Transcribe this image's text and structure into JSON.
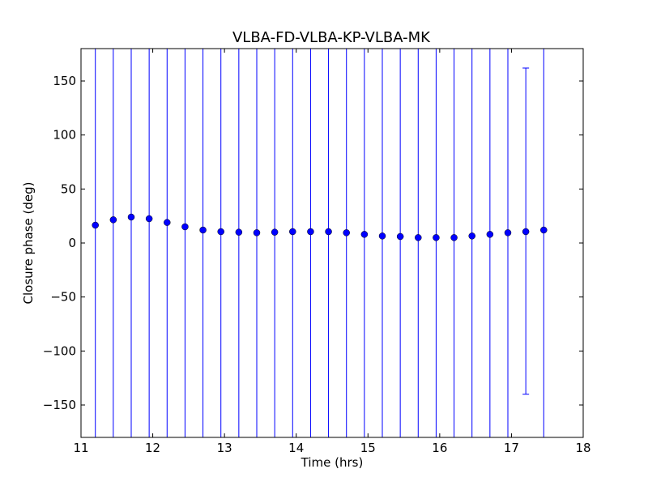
{
  "chart_data": {
    "type": "scatter",
    "title": "VLBA-FD-VLBA-KP-VLBA-MK",
    "xlabel": "Time (hrs)",
    "ylabel": "Closure phase (deg)",
    "xlim": [
      11,
      18
    ],
    "ylim": [
      -180,
      180
    ],
    "x_ticks": [
      11,
      12,
      13,
      14,
      15,
      16,
      17,
      18
    ],
    "x_tick_labels": [
      "11",
      "12",
      "13",
      "14",
      "15",
      "16",
      "17",
      "18"
    ],
    "y_ticks": [
      150,
      100,
      50,
      0,
      -50,
      -100,
      -150
    ],
    "y_tick_labels": [
      "150",
      "100",
      "50",
      "0",
      "−50",
      "−100",
      "−150"
    ],
    "grid": false,
    "marker_color": "#0000ff",
    "errorbar_color": "#0000ff",
    "points": [
      {
        "x": 11.2,
        "y": 16.5,
        "yerr_low": -180,
        "yerr_high": 180
      },
      {
        "x": 11.45,
        "y": 21.5,
        "yerr_low": -180,
        "yerr_high": 180
      },
      {
        "x": 11.7,
        "y": 24.0,
        "yerr_low": -180,
        "yerr_high": 180
      },
      {
        "x": 11.95,
        "y": 22.5,
        "yerr_low": -180,
        "yerr_high": 180
      },
      {
        "x": 12.2,
        "y": 19.0,
        "yerr_low": -180,
        "yerr_high": 180
      },
      {
        "x": 12.45,
        "y": 15.0,
        "yerr_low": -180,
        "yerr_high": 180
      },
      {
        "x": 12.7,
        "y": 12.0,
        "yerr_low": -180,
        "yerr_high": 180
      },
      {
        "x": 12.95,
        "y": 10.5,
        "yerr_low": -180,
        "yerr_high": 180
      },
      {
        "x": 13.2,
        "y": 10.0,
        "yerr_low": -180,
        "yerr_high": 180
      },
      {
        "x": 13.45,
        "y": 9.5,
        "yerr_low": -180,
        "yerr_high": 180
      },
      {
        "x": 13.7,
        "y": 10.0,
        "yerr_low": -180,
        "yerr_high": 180
      },
      {
        "x": 13.95,
        "y": 10.5,
        "yerr_low": -180,
        "yerr_high": 180
      },
      {
        "x": 14.2,
        "y": 10.5,
        "yerr_low": -180,
        "yerr_high": 180
      },
      {
        "x": 14.45,
        "y": 10.5,
        "yerr_low": -180,
        "yerr_high": 180
      },
      {
        "x": 14.7,
        "y": 9.5,
        "yerr_low": -180,
        "yerr_high": 180
      },
      {
        "x": 14.95,
        "y": 8.0,
        "yerr_low": -180,
        "yerr_high": 180
      },
      {
        "x": 15.2,
        "y": 6.5,
        "yerr_low": -180,
        "yerr_high": 180
      },
      {
        "x": 15.45,
        "y": 6.0,
        "yerr_low": -180,
        "yerr_high": 180
      },
      {
        "x": 15.7,
        "y": 5.0,
        "yerr_low": -180,
        "yerr_high": 180
      },
      {
        "x": 15.95,
        "y": 5.0,
        "yerr_low": -180,
        "yerr_high": 180
      },
      {
        "x": 16.2,
        "y": 5.0,
        "yerr_low": -180,
        "yerr_high": 180
      },
      {
        "x": 16.45,
        "y": 6.5,
        "yerr_low": -180,
        "yerr_high": 180
      },
      {
        "x": 16.7,
        "y": 8.0,
        "yerr_low": -180,
        "yerr_high": 180
      },
      {
        "x": 16.95,
        "y": 9.5,
        "yerr_low": -180,
        "yerr_high": 180
      },
      {
        "x": 17.2,
        "y": 10.5,
        "yerr_low": -140,
        "yerr_high": 162
      },
      {
        "x": 17.45,
        "y": 12.0,
        "yerr_low": -180,
        "yerr_high": 180
      }
    ]
  }
}
